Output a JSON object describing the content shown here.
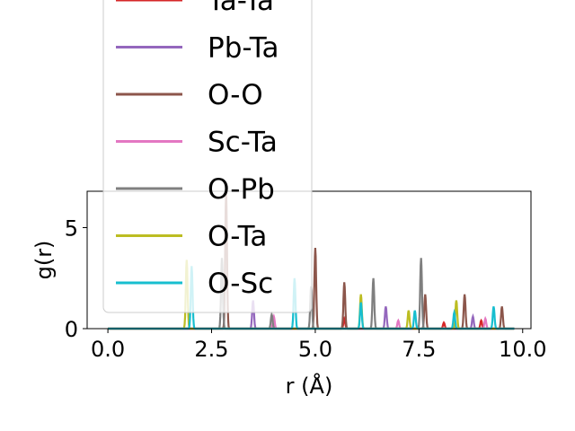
{
  "chart_data": {
    "type": "line",
    "xlabel": "r (Å)",
    "ylabel": "g(r)",
    "xlim": [
      -0.5,
      10.2
    ],
    "ylim": [
      0,
      6.8
    ],
    "xticks": [
      0.0,
      2.5,
      5.0,
      7.5,
      10.0
    ],
    "xtick_labels": [
      "0.0",
      "2.5",
      "5.0",
      "7.5",
      "10.0"
    ],
    "yticks": [
      0,
      5
    ],
    "ytick_labels": [
      "0",
      "5"
    ],
    "grid": false,
    "legend_position": "upper center, partially above the plot area",
    "series": [
      {
        "name": "Ta-Ta",
        "color": "#d62728",
        "peaks": [
          [
            5.7,
            0.5
          ],
          [
            8.1,
            0.3
          ],
          [
            9.0,
            0.4
          ]
        ]
      },
      {
        "name": "Pb-Ta",
        "color": "#9467bd",
        "peaks": [
          [
            3.5,
            1.4
          ],
          [
            6.7,
            1.1
          ],
          [
            8.8,
            0.6
          ]
        ]
      },
      {
        "name": "O-O",
        "color": "#8c564b",
        "peaks": [
          [
            2.85,
            6.8
          ],
          [
            5.0,
            4.0
          ],
          [
            5.7,
            2.3
          ],
          [
            7.65,
            1.7
          ],
          [
            8.6,
            1.7
          ],
          [
            9.5,
            1.1
          ]
        ]
      },
      {
        "name": "Sc-Ta",
        "color": "#e377c2",
        "peaks": [
          [
            4.0,
            0.6
          ],
          [
            7.0,
            0.4
          ],
          [
            9.1,
            0.5
          ]
        ]
      },
      {
        "name": "O-Pb",
        "color": "#7f7f7f",
        "peaks": [
          [
            2.75,
            3.5
          ],
          [
            3.95,
            0.7
          ],
          [
            4.9,
            2.1
          ],
          [
            6.4,
            2.5
          ],
          [
            7.55,
            3.5
          ]
        ]
      },
      {
        "name": "O-Ta",
        "color": "#bcbd22",
        "peaks": [
          [
            1.9,
            3.4
          ],
          [
            6.1,
            1.7
          ],
          [
            7.25,
            0.9
          ],
          [
            8.4,
            1.4
          ]
        ]
      },
      {
        "name": "O-Sc",
        "color": "#17becf",
        "peaks": [
          [
            2.02,
            3.1
          ],
          [
            4.5,
            2.5
          ],
          [
            6.1,
            1.3
          ],
          [
            7.4,
            0.9
          ],
          [
            8.35,
            0.8
          ],
          [
            9.3,
            1.1
          ]
        ]
      }
    ]
  }
}
